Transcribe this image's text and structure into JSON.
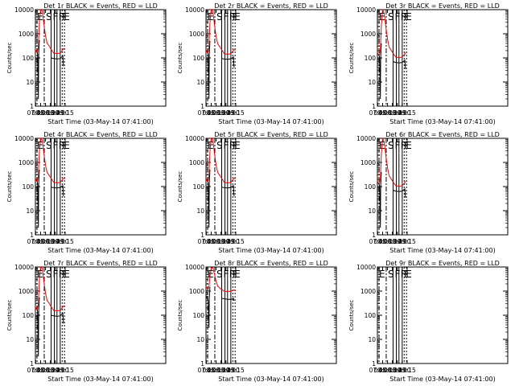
{
  "figure": {
    "xlabel": "Start Time (03-May-14 07:41:00)",
    "ylabel": "Counts/sec",
    "x_range_min": [
      464,
      863
    ],
    "x_ticks": [
      {
        "label": "07:45",
        "min": 465
      },
      {
        "label": "08:00",
        "min": 480
      },
      {
        "label": "08:15",
        "min": 495
      },
      {
        "label": "08:30",
        "min": 510
      },
      {
        "label": "08:45",
        "min": 525
      },
      {
        "label": "09:00",
        "min": 540
      },
      {
        "label": "09:15",
        "min": 555
      }
    ],
    "y_ticks": [
      {
        "label": "1",
        "value": 1
      },
      {
        "label": "10",
        "value": 10
      },
      {
        "label": "100",
        "value": 100
      },
      {
        "label": "1000",
        "value": 1000
      },
      {
        "label": "10000",
        "value": 10000
      }
    ],
    "colors": {
      "events": "#000000",
      "lld": "#ff0000"
    }
  },
  "chart_data": [
    {
      "type": "line",
      "title": "Det 1r BLACK = Events, RED = LLD",
      "ylim": [
        1,
        10000
      ],
      "yscale": "log",
      "flags": [
        "E",
        "S",
        "F",
        "F",
        "F",
        "E"
      ],
      "events_x": [
        464,
        469,
        471,
        473,
        474,
        476
      ],
      "events_y": [
        200,
        180,
        140,
        2,
        150,
        550
      ],
      "events2_x": [
        512,
        520,
        530,
        540,
        548,
        550
      ],
      "events2_y": [
        100,
        95,
        90,
        95,
        120,
        45
      ],
      "lld_x": [
        464,
        470,
        473,
        476,
        480,
        485,
        490,
        495,
        500,
        505,
        510,
        520,
        530,
        540,
        550,
        555
      ],
      "lld_y": [
        200,
        170,
        300,
        3000,
        10000,
        9000,
        2500,
        800,
        400,
        330,
        250,
        160,
        150,
        160,
        240,
        230
      ]
    },
    {
      "type": "line",
      "title": "Det 2r BLACK = Events, RED = LLD",
      "ylim": [
        1,
        10000
      ],
      "yscale": "log",
      "flags": [
        "E",
        "S",
        "F",
        "F",
        "F",
        "E"
      ],
      "events_x": [
        464,
        469,
        471,
        473,
        474,
        476
      ],
      "events_y": [
        190,
        170,
        130,
        2,
        140,
        500
      ],
      "events2_x": [
        512,
        520,
        530,
        540,
        548,
        550
      ],
      "events2_y": [
        95,
        90,
        88,
        92,
        110,
        40
      ],
      "lld_x": [
        464,
        470,
        473,
        476,
        480,
        485,
        490,
        495,
        500,
        505,
        510,
        520,
        530,
        540,
        550,
        555
      ],
      "lld_y": [
        190,
        160,
        280,
        2800,
        10000,
        8500,
        2300,
        750,
        380,
        310,
        240,
        150,
        140,
        150,
        220,
        210
      ]
    },
    {
      "type": "line",
      "title": "Det 3r BLACK = Events, RED = LLD",
      "ylim": [
        1,
        10000
      ],
      "yscale": "log",
      "flags": [
        "E",
        "S",
        "F",
        "F",
        "F",
        "E"
      ],
      "events_x": [
        464,
        469,
        471,
        473,
        474,
        476
      ],
      "events_y": [
        150,
        130,
        100,
        2,
        110,
        400
      ],
      "events2_x": [
        512,
        520,
        530,
        540,
        548,
        550
      ],
      "events2_y": [
        70,
        65,
        62,
        65,
        80,
        35
      ],
      "lld_x": [
        464,
        470,
        473,
        476,
        480,
        485,
        490,
        495,
        500,
        505,
        510,
        520,
        530,
        540,
        550,
        555
      ],
      "lld_y": [
        160,
        130,
        220,
        2200,
        10000,
        7000,
        1800,
        600,
        280,
        220,
        170,
        110,
        100,
        110,
        160,
        170
      ]
    },
    {
      "type": "line",
      "title": "Det 4r BLACK = Events, RED = LLD",
      "ylim": [
        1,
        10000
      ],
      "yscale": "log",
      "flags": [
        "E",
        "S",
        "F",
        "F",
        "F",
        "E"
      ],
      "events_x": [
        464,
        469,
        471,
        473,
        474,
        476
      ],
      "events_y": [
        190,
        170,
        130,
        2,
        140,
        500
      ],
      "events2_x": [
        512,
        520,
        530,
        540,
        548,
        550
      ],
      "events2_y": [
        95,
        90,
        88,
        92,
        110,
        40
      ],
      "lld_x": [
        464,
        470,
        473,
        476,
        480,
        485,
        490,
        495,
        500,
        505,
        510,
        520,
        530,
        540,
        550,
        555
      ],
      "lld_y": [
        190,
        160,
        280,
        2800,
        10000,
        8500,
        2300,
        750,
        380,
        310,
        240,
        150,
        140,
        150,
        220,
        210
      ]
    },
    {
      "type": "line",
      "title": "Det 5r BLACK = Events, RED = LLD",
      "ylim": [
        1,
        10000
      ],
      "yscale": "log",
      "flags": [
        "E",
        "S",
        "F",
        "F",
        "F",
        "E"
      ],
      "events_x": [
        464,
        469,
        471,
        473,
        474,
        476
      ],
      "events_y": [
        190,
        170,
        130,
        2,
        140,
        500
      ],
      "events2_x": [
        512,
        520,
        530,
        540,
        548,
        550
      ],
      "events2_y": [
        95,
        90,
        88,
        92,
        110,
        40
      ],
      "lld_x": [
        464,
        470,
        473,
        476,
        480,
        485,
        490,
        495,
        500,
        505,
        510,
        520,
        530,
        540,
        550,
        555
      ],
      "lld_y": [
        190,
        160,
        280,
        2800,
        10000,
        8500,
        2300,
        750,
        380,
        310,
        240,
        150,
        140,
        150,
        220,
        210
      ]
    },
    {
      "type": "line",
      "title": "Det 6r BLACK = Events, RED = LLD",
      "ylim": [
        1,
        10000
      ],
      "yscale": "log",
      "flags": [
        "E",
        "S",
        "F",
        "F",
        "F",
        "E"
      ],
      "events_x": [
        464,
        469,
        471,
        473,
        474,
        476
      ],
      "events_y": [
        150,
        130,
        100,
        2,
        110,
        400
      ],
      "events2_x": [
        512,
        520,
        530,
        540,
        548,
        550
      ],
      "events2_y": [
        70,
        65,
        62,
        65,
        80,
        35
      ],
      "lld_x": [
        464,
        470,
        473,
        476,
        480,
        485,
        490,
        495,
        500,
        505,
        510,
        520,
        530,
        540,
        550,
        555
      ],
      "lld_y": [
        160,
        130,
        220,
        2200,
        10000,
        7000,
        1800,
        600,
        280,
        220,
        170,
        110,
        100,
        110,
        160,
        170
      ]
    },
    {
      "type": "line",
      "title": "Det 7r BLACK = Events, RED = LLD",
      "ylim": [
        1,
        10000
      ],
      "yscale": "log",
      "flags": [
        "E",
        "S",
        "F",
        "F",
        "F",
        "E"
      ],
      "events_x": [
        464,
        469,
        471,
        473,
        474,
        476
      ],
      "events_y": [
        200,
        180,
        140,
        2,
        150,
        550
      ],
      "events2_x": [
        512,
        520,
        530,
        540,
        548,
        550
      ],
      "events2_y": [
        100,
        95,
        90,
        95,
        120,
        45
      ],
      "lld_x": [
        464,
        470,
        473,
        476,
        480,
        485,
        490,
        495,
        500,
        505,
        510,
        520,
        530,
        540,
        550,
        555
      ],
      "lld_y": [
        200,
        170,
        300,
        3000,
        10000,
        9000,
        2500,
        800,
        400,
        330,
        250,
        160,
        150,
        160,
        240,
        230
      ]
    },
    {
      "type": "line",
      "title": "Det 8r BLACK = Events, RED = LLD",
      "ylim": [
        1,
        10000
      ],
      "yscale": "log",
      "flags": [
        "E",
        "S",
        "F",
        "F",
        "F",
        "E"
      ],
      "events_x": [
        464,
        469,
        471,
        473,
        474,
        476
      ],
      "events_y": [
        600,
        500,
        400,
        30,
        500,
        1500
      ],
      "events2_x": [
        512,
        520,
        530,
        540,
        548,
        550
      ],
      "events2_y": [
        500,
        480,
        460,
        450,
        500,
        400
      ],
      "lld_x": [
        464,
        470,
        473,
        476,
        480,
        485,
        490,
        495,
        500,
        505,
        510,
        520,
        530,
        540,
        550,
        555
      ],
      "lld_y": [
        1500,
        1200,
        1500,
        4000,
        9000,
        9500,
        5000,
        2500,
        1600,
        1400,
        1200,
        1000,
        950,
        1000,
        1100,
        1000
      ]
    },
    {
      "type": "line",
      "title": "Det 9r BLACK = Events, RED = LLD",
      "ylim": [
        1,
        10000
      ],
      "yscale": "log",
      "flags": [
        "E",
        "S",
        "F",
        "F",
        "F",
        "E"
      ],
      "events_x": [],
      "events_y": [],
      "events2_x": [],
      "events2_y": [],
      "lld_x": [],
      "lld_y": []
    }
  ]
}
